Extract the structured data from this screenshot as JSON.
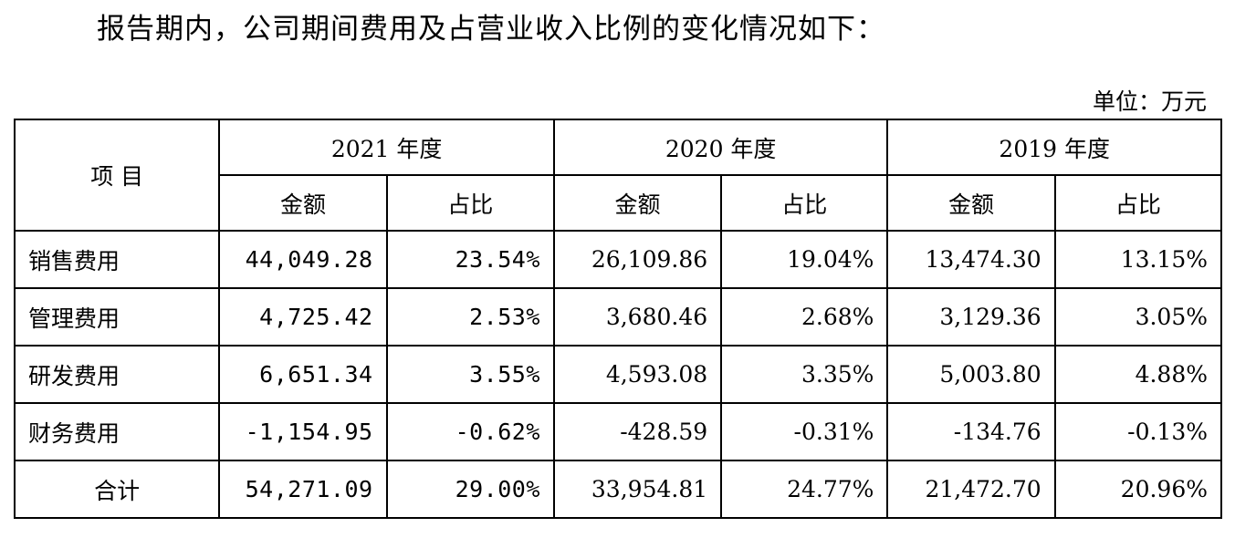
{
  "document": {
    "intro": "报告期内，公司期间费用及占营业收入比例的变化情况如下：",
    "unit_label": "单位：万元"
  },
  "table": {
    "header": {
      "item_label": "项 目",
      "years": [
        "2021 年度",
        "2020 年度",
        "2019 年度"
      ],
      "amount_label": "金额",
      "ratio_label": "占比"
    },
    "rows": [
      {
        "item": "销售费用",
        "y2021_amount": "44,049.28",
        "y2021_ratio": "23.54%",
        "y2020_amount": "26,109.86",
        "y2020_ratio": "19.04%",
        "y2019_amount": "13,474.30",
        "y2019_ratio": "13.15%"
      },
      {
        "item": "管理费用",
        "y2021_amount": "4,725.42",
        "y2021_ratio": "2.53%",
        "y2020_amount": "3,680.46",
        "y2020_ratio": "2.68%",
        "y2019_amount": "3,129.36",
        "y2019_ratio": "3.05%"
      },
      {
        "item": "研发费用",
        "y2021_amount": "6,651.34",
        "y2021_ratio": "3.55%",
        "y2020_amount": "4,593.08",
        "y2020_ratio": "3.35%",
        "y2019_amount": "5,003.80",
        "y2019_ratio": "4.88%"
      },
      {
        "item": "财务费用",
        "y2021_amount": "-1,154.95",
        "y2021_ratio": "-0.62%",
        "y2020_amount": "-428.59",
        "y2020_ratio": "-0.31%",
        "y2019_amount": "-134.76",
        "y2019_ratio": "-0.13%"
      }
    ],
    "total": {
      "item": "合计",
      "y2021_amount": "54,271.09",
      "y2021_ratio": "29.00%",
      "y2020_amount": "33,954.81",
      "y2020_ratio": "24.77%",
      "y2019_amount": "21,472.70",
      "y2019_ratio": "20.96%"
    }
  }
}
